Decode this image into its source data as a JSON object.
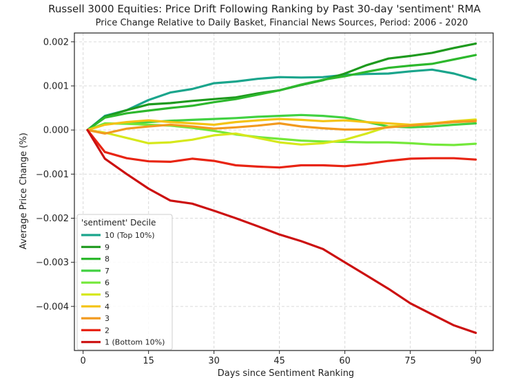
{
  "chart_data": {
    "type": "line",
    "title": "Russell 3000 Equities: Price Drift Following Ranking by Past 30-day 'sentiment' RMA",
    "subtitle": "Price Change Relative to Daily Basket, Financial News Sources, Period: 2006 - 2020",
    "xlabel": "Days since Sentiment Ranking",
    "ylabel": "Average Price Change (%)",
    "xlim": [
      -2,
      94
    ],
    "ylim": [
      -0.005,
      0.0022
    ],
    "xticks": [
      0,
      15,
      30,
      45,
      60,
      75,
      90
    ],
    "xtick_labels": [
      "0",
      "15",
      "30",
      "45",
      "60",
      "75",
      "90"
    ],
    "yticks": [
      -0.004,
      -0.003,
      -0.002,
      -0.001,
      0.0,
      0.001,
      0.002
    ],
    "ytick_labels": [
      "−0.004",
      "−0.003",
      "−0.002",
      "−0.001",
      "0.000",
      "0.001",
      "0.002"
    ],
    "grid": true,
    "legend_title": "'sentiment' Decile",
    "legend_position": "lower-left",
    "x": [
      1,
      5,
      10,
      15,
      20,
      25,
      30,
      35,
      40,
      45,
      50,
      55,
      60,
      65,
      70,
      75,
      80,
      85,
      90
    ],
    "series": [
      {
        "name": "10 (Top 10%)",
        "color": "#1aa58c",
        "values": [
          0.0,
          0.00032,
          0.00045,
          0.00068,
          0.00085,
          0.00093,
          0.00106,
          0.0011,
          0.00116,
          0.0012,
          0.00119,
          0.0012,
          0.00125,
          0.00127,
          0.00128,
          0.00133,
          0.00137,
          0.00128,
          0.00114
        ]
      },
      {
        "name": "9",
        "color": "#1e9a1e",
        "values": [
          0.0,
          0.0003,
          0.00045,
          0.00058,
          0.00061,
          0.00066,
          0.0007,
          0.00074,
          0.00083,
          0.0009,
          0.00102,
          0.00113,
          0.00128,
          0.00147,
          0.00162,
          0.00168,
          0.00175,
          0.00186,
          0.00196
        ]
      },
      {
        "name": "8",
        "color": "#2db82d",
        "values": [
          0.0,
          0.00028,
          0.00038,
          0.00044,
          0.0005,
          0.00055,
          0.00063,
          0.0007,
          0.0008,
          0.0009,
          0.00103,
          0.00114,
          0.00122,
          0.00132,
          0.00141,
          0.00146,
          0.0015,
          0.0016,
          0.0017
        ]
      },
      {
        "name": "7",
        "color": "#42d142",
        "values": [
          0.0,
          0.00014,
          0.00015,
          0.00018,
          0.00021,
          0.00023,
          0.00025,
          0.00027,
          0.0003,
          0.00032,
          0.00034,
          0.00032,
          0.00028,
          0.00018,
          8e-05,
          6e-05,
          8e-05,
          0.00012,
          0.00015
        ]
      },
      {
        "name": "6",
        "color": "#74e83a",
        "values": [
          0.0,
          0.00015,
          0.00014,
          0.00012,
          0.0001,
          5e-05,
          -2e-05,
          -0.0001,
          -0.00016,
          -0.0002,
          -0.00024,
          -0.00026,
          -0.00027,
          -0.00028,
          -0.00028,
          -0.0003,
          -0.00033,
          -0.00034,
          -0.00031
        ]
      },
      {
        "name": "5",
        "color": "#d6e81c",
        "values": [
          0.0,
          -6e-05,
          -0.00018,
          -0.0003,
          -0.00028,
          -0.00022,
          -0.00012,
          -8e-05,
          -0.00018,
          -0.00028,
          -0.00033,
          -0.0003,
          -0.00022,
          -8e-05,
          8e-05,
          0.0001,
          0.00014,
          0.0002,
          0.00024
        ]
      },
      {
        "name": "4",
        "color": "#f4c314",
        "values": [
          0.0,
          0.00012,
          0.00018,
          0.00022,
          0.00018,
          0.00015,
          0.00012,
          0.00018,
          0.00022,
          0.00025,
          0.00023,
          0.0002,
          0.00022,
          0.00018,
          0.00015,
          0.00012,
          0.00015,
          0.0002,
          0.00022
        ]
      },
      {
        "name": "3",
        "color": "#f29a1f",
        "values": [
          0.0,
          -8e-05,
          3e-05,
          8e-05,
          0.00012,
          8e-05,
          3e-05,
          6e-05,
          0.0001,
          0.00015,
          8e-05,
          4e-05,
          1e-05,
          1e-05,
          6e-05,
          0.0001,
          0.00014,
          0.00018,
          0.0002
        ]
      },
      {
        "name": "2",
        "color": "#e82412",
        "values": [
          0.0,
          -0.0005,
          -0.00064,
          -0.00071,
          -0.00072,
          -0.00065,
          -0.0007,
          -0.0008,
          -0.00083,
          -0.00085,
          -0.0008,
          -0.0008,
          -0.00082,
          -0.00077,
          -0.0007,
          -0.00065,
          -0.00064,
          -0.00064,
          -0.00067
        ]
      },
      {
        "name": "1 (Bottom 10%)",
        "color": "#cc1010",
        "values": [
          0.0,
          -0.00065,
          -0.001,
          -0.00133,
          -0.0016,
          -0.00167,
          -0.00183,
          -0.002,
          -0.00218,
          -0.00237,
          -0.00252,
          -0.0027,
          -0.003,
          -0.0033,
          -0.0036,
          -0.00393,
          -0.00418,
          -0.00443,
          -0.0046
        ]
      }
    ]
  }
}
